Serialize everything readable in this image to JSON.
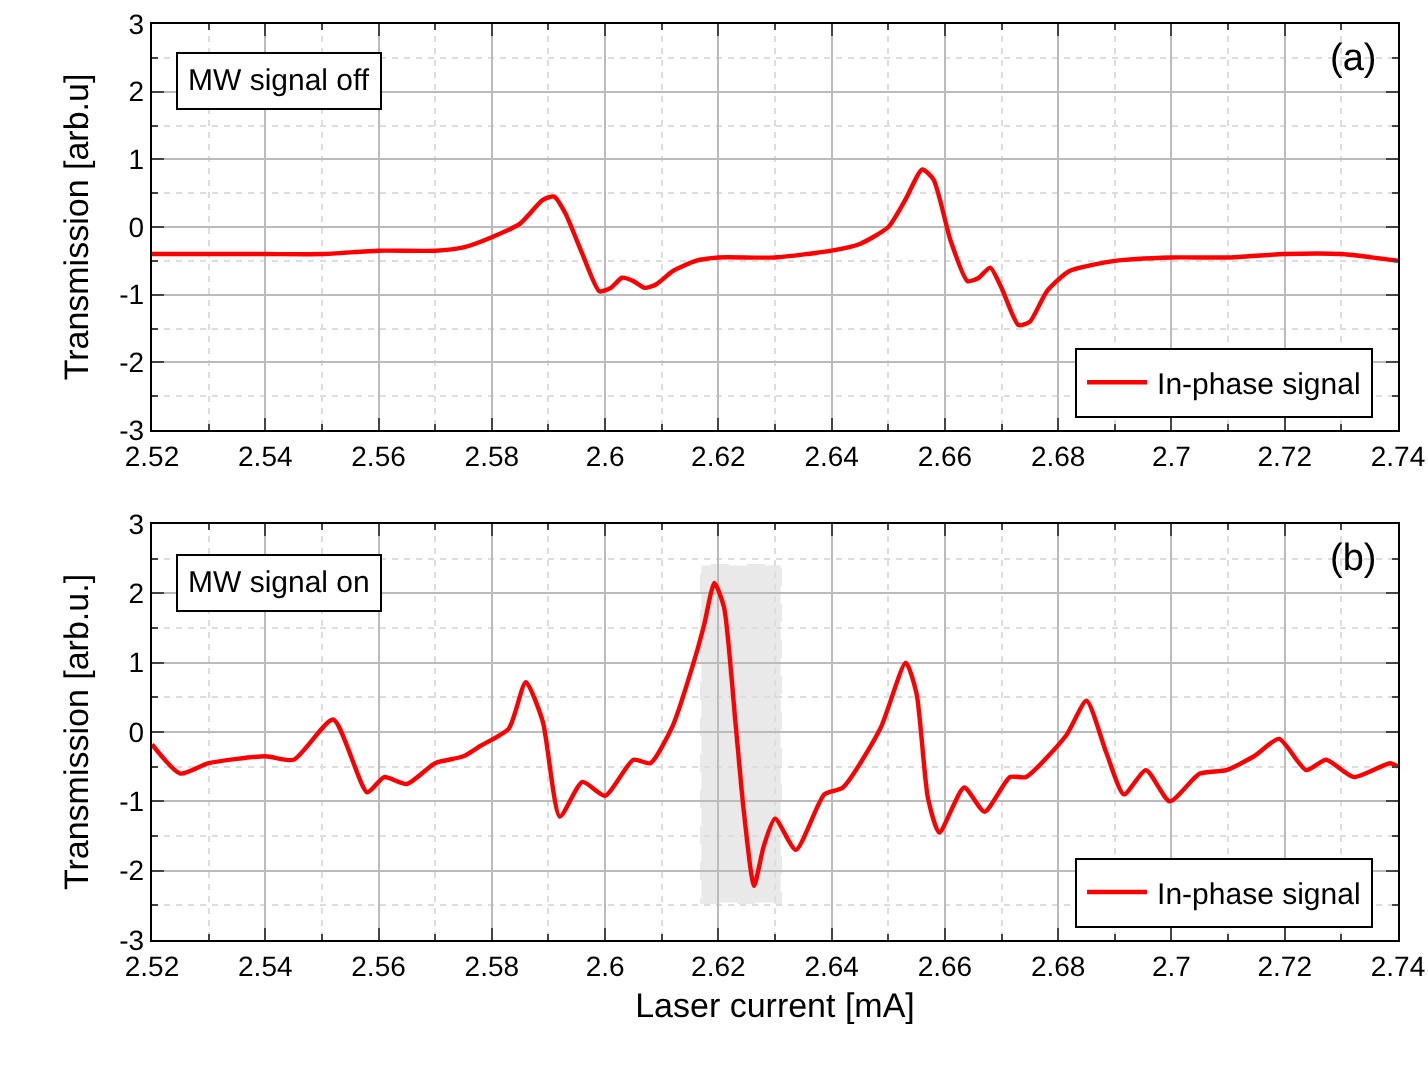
{
  "chart_data": [
    {
      "type": "line",
      "ylabel": "Transmission [arb.u]",
      "annotations": [
        "MW signal off",
        "(a)"
      ],
      "xlim": [
        2.52,
        2.74
      ],
      "xticks": [
        2.52,
        2.54,
        2.56,
        2.58,
        2.6,
        2.62,
        2.64,
        2.66,
        2.68,
        2.7,
        2.72,
        2.74
      ],
      "ylim": [
        -3,
        3
      ],
      "yticks": [
        -3,
        -2,
        -1,
        0,
        1,
        2,
        3
      ],
      "grid": true,
      "legend": "bottom right",
      "marker": "none",
      "line_style": "solid",
      "series": [
        {
          "name": "In-phase signal",
          "color": "#ff0000",
          "x": [
            2.52,
            2.53,
            2.54,
            2.55,
            2.56,
            2.57,
            2.575,
            2.58,
            2.585,
            2.589,
            2.591,
            2.593,
            2.596,
            2.599,
            2.601,
            2.603,
            2.605,
            2.607,
            2.609,
            2.612,
            2.616,
            2.62,
            2.63,
            2.64,
            2.645,
            2.65,
            2.653,
            2.656,
            2.658,
            2.661,
            2.664,
            2.666,
            2.668,
            2.67,
            2.673,
            2.675,
            2.678,
            2.682,
            2.69,
            2.7,
            2.71,
            2.72,
            2.73,
            2.74
          ],
          "values": [
            -0.4,
            -0.4,
            -0.4,
            -0.4,
            -0.35,
            -0.35,
            -0.3,
            -0.15,
            0.05,
            0.4,
            0.45,
            0.2,
            -0.4,
            -0.95,
            -0.9,
            -0.75,
            -0.8,
            -0.9,
            -0.85,
            -0.65,
            -0.5,
            -0.45,
            -0.45,
            -0.35,
            -0.25,
            0.0,
            0.4,
            0.85,
            0.7,
            -0.2,
            -0.8,
            -0.75,
            -0.6,
            -0.9,
            -1.45,
            -1.4,
            -0.95,
            -0.65,
            -0.5,
            -0.45,
            -0.45,
            -0.4,
            -0.4,
            -0.5
          ]
        }
      ]
    },
    {
      "type": "line",
      "xlabel": "Laser current [mA]",
      "ylabel": "Transmission [arb.u.]",
      "annotations": [
        "MW signal on",
        "(b)"
      ],
      "xlim": [
        2.52,
        2.74
      ],
      "xticks": [
        2.52,
        2.54,
        2.56,
        2.58,
        2.6,
        2.62,
        2.64,
        2.66,
        2.68,
        2.7,
        2.72,
        2.74
      ],
      "ylim": [
        -3,
        3
      ],
      "yticks": [
        -3,
        -2,
        -1,
        0,
        1,
        2,
        3
      ],
      "grid": true,
      "legend": "bottom right",
      "marker": "none",
      "line_style": "solid",
      "bands": [
        {
          "axis": "x",
          "from": 2.617,
          "to": 2.631,
          "color": "#555555"
        }
      ],
      "series": [
        {
          "name": "In-phase signal",
          "color": "#ff0000",
          "x": [
            2.52,
            2.525,
            2.53,
            2.54,
            2.545,
            2.552,
            2.558,
            2.561,
            2.565,
            2.57,
            2.575,
            2.578,
            2.583,
            2.586,
            2.589,
            2.592,
            2.596,
            2.6,
            2.605,
            2.608,
            2.612,
            2.616,
            2.6175,
            2.6193,
            2.621,
            2.623,
            2.6245,
            2.6263,
            2.628,
            2.63,
            2.6337,
            2.6387,
            2.642,
            2.6486,
            2.6531,
            2.655,
            2.657,
            2.659,
            2.6634,
            2.667,
            2.6715,
            2.6743,
            2.6814,
            2.685,
            2.6885,
            2.6916,
            2.6955,
            2.6997,
            2.705,
            2.7097,
            2.7146,
            2.719,
            2.7238,
            2.7273,
            2.7322,
            2.7386,
            2.74
          ],
          "values": [
            -0.18,
            -0.6,
            -0.45,
            -0.35,
            -0.4,
            0.18,
            -0.87,
            -0.65,
            -0.75,
            -0.45,
            -0.35,
            -0.2,
            0.05,
            0.72,
            0.15,
            -1.22,
            -0.72,
            -0.92,
            -0.4,
            -0.45,
            0.1,
            1.1,
            1.55,
            2.15,
            1.8,
            0.15,
            -1.15,
            -2.22,
            -1.65,
            -1.25,
            -1.7,
            -0.9,
            -0.8,
            0.05,
            1.0,
            0.55,
            -0.95,
            -1.45,
            -0.8,
            -1.15,
            -0.65,
            -0.65,
            -0.05,
            0.45,
            -0.3,
            -0.9,
            -0.55,
            -1.0,
            -0.6,
            -0.55,
            -0.35,
            -0.1,
            -0.55,
            -0.4,
            -0.65,
            -0.45,
            -0.5
          ]
        }
      ]
    }
  ]
}
